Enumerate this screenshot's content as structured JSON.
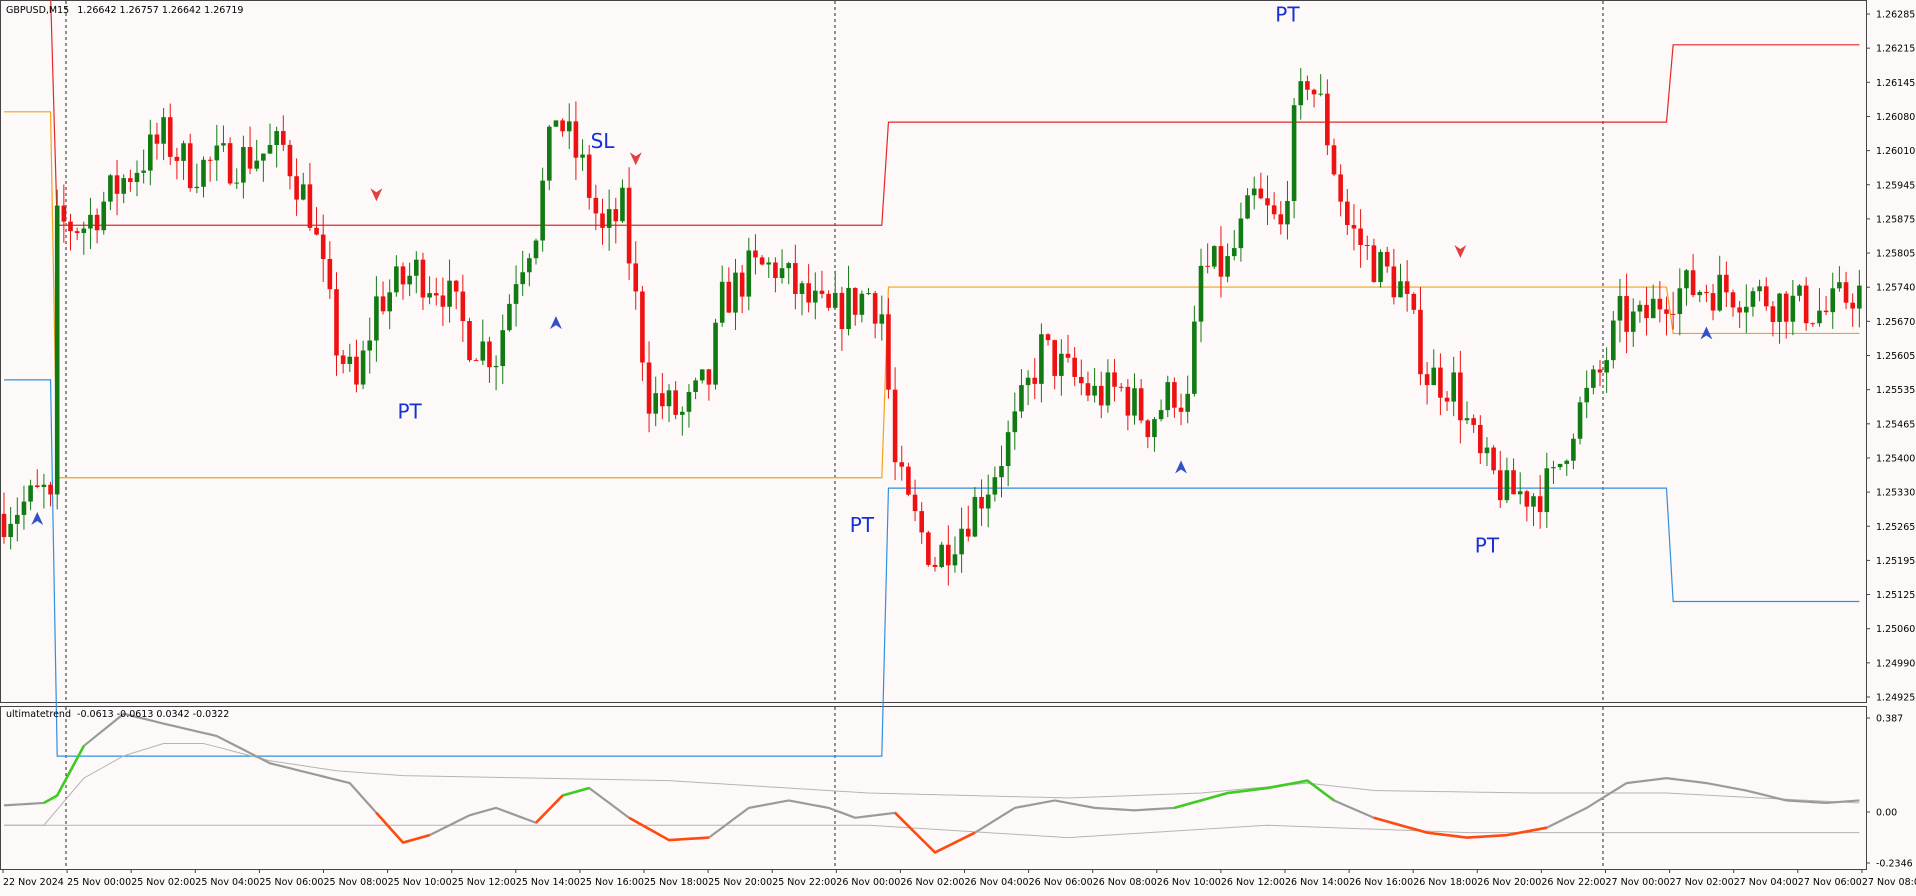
{
  "header": {
    "symbol": "GBPUSD,M15",
    "ohlc": "1.26642 1.26757 1.26642 1.26719"
  },
  "indicator": {
    "name": "ultimatetrend",
    "values": "-0.0613 -0.0613 0.0342 -0.0322"
  },
  "colors": {
    "background": "#fdf9f9",
    "bull": "#127a12",
    "bear": "#ee1111",
    "upper_level": "#e52727",
    "mid_level": "#f2a21a",
    "lower_level": "#2f8fe0",
    "osc_up": "#3ecc22",
    "osc_down": "#ff4a10",
    "osc_neutral": "#9a9a9a",
    "signal_line": "#b4b4b4",
    "arrow_up": "#3350c8",
    "arrow_down": "#e04040",
    "marker_text": "#1630d8"
  },
  "chart_data": [
    {
      "type": "candlestick",
      "title": "GBPUSD,M15",
      "ylim": [
        1.24925,
        1.26285
      ],
      "y_ticks": [
        "1.26285",
        "1.26215",
        "1.26145",
        "1.26080",
        "1.26010",
        "1.25945",
        "1.25875",
        "1.25805",
        "1.25740",
        "1.25670",
        "1.25605",
        "1.25535",
        "1.25465",
        "1.25400",
        "1.25330",
        "1.25265",
        "1.25195",
        "1.25125",
        "1.25060",
        "1.24990",
        "1.24925"
      ],
      "x_ticks": [
        "22 Nov 2024",
        "25 Nov 00:00",
        "25 Nov 02:00",
        "25 Nov 04:00",
        "25 Nov 06:00",
        "25 Nov 08:00",
        "25 Nov 10:00",
        "25 Nov 12:00",
        "25 Nov 14:00",
        "25 Nov 16:00",
        "25 Nov 18:00",
        "25 Nov 20:00",
        "25 Nov 22:00",
        "26 Nov 00:00",
        "26 Nov 02:00",
        "26 Nov 04:00",
        "26 Nov 06:00",
        "26 Nov 08:00",
        "26 Nov 10:00",
        "26 Nov 12:00",
        "26 Nov 14:00",
        "26 Nov 16:00",
        "26 Nov 18:00",
        "26 Nov 20:00",
        "26 Nov 22:00",
        "27 Nov 00:00",
        "27 Nov 02:00",
        "27 Nov 04:00",
        "27 Nov 06:00",
        "27 Nov 08:00"
      ],
      "day_separators": [
        "25 Nov 00:00",
        "26 Nov 00:00",
        "27 Nov 00:00"
      ],
      "close_path": [
        [
          0,
          1.2529
        ],
        [
          6,
          1.2533
        ],
        [
          7,
          1.253
        ],
        [
          8,
          1.2585
        ],
        [
          12,
          1.2585
        ],
        [
          18,
          1.2594
        ],
        [
          24,
          1.2602
        ],
        [
          28,
          1.2596
        ],
        [
          36,
          1.2598
        ],
        [
          42,
          1.26
        ],
        [
          46,
          1.2588
        ],
        [
          50,
          1.2562
        ],
        [
          53,
          1.2553
        ],
        [
          56,
          1.257
        ],
        [
          62,
          1.2576
        ],
        [
          66,
          1.2573
        ],
        [
          70,
          1.2563
        ],
        [
          74,
          1.256
        ],
        [
          77,
          1.2576
        ],
        [
          80,
          1.2585
        ],
        [
          83,
          1.2607
        ],
        [
          84,
          1.2604
        ],
        [
          87,
          1.2596
        ],
        [
          90,
          1.2583
        ],
        [
          93,
          1.2588
        ],
        [
          97,
          1.2552
        ],
        [
          102,
          1.2548
        ],
        [
          106,
          1.2555
        ],
        [
          108,
          1.257
        ],
        [
          112,
          1.2576
        ],
        [
          116,
          1.2577
        ],
        [
          120,
          1.2571
        ],
        [
          124,
          1.2567
        ],
        [
          130,
          1.2572
        ],
        [
          132,
          1.2568
        ],
        [
          134,
          1.2538
        ],
        [
          136,
          1.253
        ],
        [
          140,
          1.252
        ],
        [
          144,
          1.2527
        ],
        [
          148,
          1.2535
        ],
        [
          152,
          1.2546
        ],
        [
          156,
          1.2561
        ],
        [
          160,
          1.2556
        ],
        [
          164,
          1.2552
        ],
        [
          168,
          1.2553
        ],
        [
          172,
          1.2547
        ],
        [
          176,
          1.2553
        ],
        [
          178,
          1.255
        ],
        [
          180,
          1.2576
        ],
        [
          184,
          1.2577
        ],
        [
          188,
          1.259
        ],
        [
          192,
          1.2584
        ],
        [
          194,
          1.2604
        ],
        [
          196,
          1.2614
        ],
        [
          198,
          1.2608
        ],
        [
          202,
          1.2585
        ],
        [
          206,
          1.2578
        ],
        [
          210,
          1.2573
        ],
        [
          214,
          1.2556
        ],
        [
          218,
          1.2554
        ],
        [
          222,
          1.2539
        ],
        [
          226,
          1.2533
        ],
        [
          230,
          1.2533
        ],
        [
          233,
          1.2535
        ],
        [
          236,
          1.2547
        ],
        [
          240,
          1.2556
        ],
        [
          243,
          1.2567
        ],
        [
          246,
          1.2566
        ],
        [
          250,
          1.2572
        ],
        [
          256,
          1.2573
        ],
        [
          262,
          1.2572
        ],
        [
          268,
          1.257
        ],
        [
          274,
          1.2568
        ],
        [
          278,
          1.2572
        ]
      ],
      "levels": [
        {
          "segment": [
            0,
            7
          ],
          "upper": 1.263,
          "mid": 1.2607,
          "lower": 1.2555
        },
        {
          "segment": [
            8,
            132
          ],
          "upper": 1.2585,
          "mid": 1.2536,
          "lower": 1.2482
        },
        {
          "segment": [
            133,
            250
          ],
          "upper": 1.2605,
          "mid": 1.2573,
          "lower": 1.2534
        },
        {
          "segment": [
            251,
            279
          ],
          "upper": 1.262,
          "mid": 1.2564,
          "lower": 1.2512
        }
      ],
      "markers": [
        {
          "label": "PT",
          "bar": 61,
          "price": 1.25475
        },
        {
          "label": "SL",
          "bar": 90,
          "price": 1.26
        },
        {
          "label": "PT",
          "bar": 129,
          "price": 1.25255
        },
        {
          "label": "PT",
          "bar": 193,
          "price": 1.26245
        },
        {
          "label": "PT",
          "bar": 223,
          "price": 1.25215
        }
      ],
      "arrows": [
        {
          "dir": "up",
          "bar": 5,
          "price": 1.2528
        },
        {
          "dir": "down",
          "bar": 56,
          "price": 1.2591
        },
        {
          "dir": "up",
          "bar": 83,
          "price": 1.2566
        },
        {
          "dir": "down",
          "bar": 95,
          "price": 1.2598
        },
        {
          "dir": "up",
          "bar": 177,
          "price": 1.2538
        },
        {
          "dir": "down",
          "bar": 219,
          "price": 1.258
        },
        {
          "dir": "up",
          "bar": 256,
          "price": 1.2564
        }
      ]
    },
    {
      "type": "line",
      "title": "ultimatetrend",
      "ylim": [
        -0.2346,
        0.387
      ],
      "y_ticks": [
        "0.387",
        "0.00",
        "-0.2346"
      ],
      "main_path": [
        [
          0,
          0.01
        ],
        [
          6,
          0.02
        ],
        [
          8,
          0.05
        ],
        [
          12,
          0.25
        ],
        [
          18,
          0.38
        ],
        [
          24,
          0.34
        ],
        [
          32,
          0.29
        ],
        [
          40,
          0.18
        ],
        [
          46,
          0.14
        ],
        [
          52,
          0.1
        ],
        [
          56,
          -0.02
        ],
        [
          60,
          -0.14
        ],
        [
          64,
          -0.11
        ],
        [
          70,
          -0.03
        ],
        [
          74,
          0.0
        ],
        [
          80,
          -0.06
        ],
        [
          84,
          0.05
        ],
        [
          88,
          0.08
        ],
        [
          94,
          -0.04
        ],
        [
          100,
          -0.13
        ],
        [
          106,
          -0.12
        ],
        [
          112,
          0.0
        ],
        [
          118,
          0.03
        ],
        [
          124,
          0.0
        ],
        [
          128,
          -0.04
        ],
        [
          134,
          -0.02
        ],
        [
          140,
          -0.18
        ],
        [
          146,
          -0.1
        ],
        [
          152,
          0.0
        ],
        [
          158,
          0.03
        ],
        [
          164,
          0.0
        ],
        [
          170,
          -0.01
        ],
        [
          176,
          0.0
        ],
        [
          184,
          0.06
        ],
        [
          190,
          0.08
        ],
        [
          196,
          0.11
        ],
        [
          200,
          0.03
        ],
        [
          206,
          -0.04
        ],
        [
          214,
          -0.1
        ],
        [
          220,
          -0.12
        ],
        [
          226,
          -0.11
        ],
        [
          232,
          -0.08
        ],
        [
          238,
          0.0
        ],
        [
          244,
          0.1
        ],
        [
          250,
          0.12
        ],
        [
          256,
          0.1
        ],
        [
          262,
          0.07
        ],
        [
          268,
          0.03
        ],
        [
          274,
          0.02
        ],
        [
          279,
          0.03
        ]
      ],
      "up_segments": [
        [
          6,
          12
        ],
        [
          84,
          88
        ],
        [
          176,
          200
        ]
      ],
      "down_segments": [
        [
          56,
          64
        ],
        [
          80,
          84
        ],
        [
          94,
          106
        ],
        [
          134,
          146
        ],
        [
          206,
          232
        ]
      ],
      "signal_path": [
        [
          0,
          -0.07
        ],
        [
          6,
          -0.07
        ],
        [
          12,
          0.12
        ],
        [
          18,
          0.21
        ],
        [
          24,
          0.26
        ],
        [
          30,
          0.26
        ],
        [
          40,
          0.19
        ],
        [
          50,
          0.15
        ],
        [
          60,
          0.13
        ],
        [
          80,
          0.12
        ],
        [
          100,
          0.11
        ],
        [
          130,
          0.06
        ],
        [
          160,
          0.04
        ],
        [
          180,
          0.06
        ],
        [
          196,
          0.1
        ],
        [
          206,
          0.07
        ],
        [
          230,
          0.06
        ],
        [
          250,
          0.06
        ],
        [
          264,
          0.04
        ],
        [
          279,
          0.02
        ]
      ],
      "baseline_path": [
        [
          0,
          -0.07
        ],
        [
          100,
          -0.07
        ],
        [
          130,
          -0.07
        ],
        [
          160,
          -0.12
        ],
        [
          190,
          -0.07
        ],
        [
          220,
          -0.1
        ],
        [
          279,
          -0.1
        ]
      ]
    }
  ]
}
